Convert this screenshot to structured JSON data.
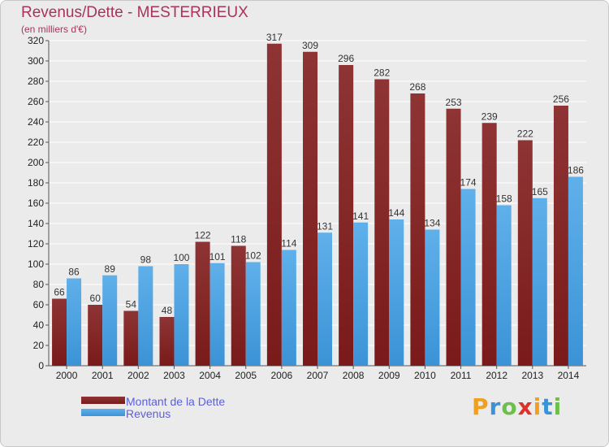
{
  "title": "Revenus/Dette - MESTERRIEUX",
  "subtitle": "(en milliers d'€)",
  "logo_text": "Proxiti",
  "colors": {
    "dette": "#7a1a1a",
    "dette_light": "#8e3434",
    "revenus": "#3b93d6",
    "revenus_light": "#5fb0ea",
    "title": "#a8345a",
    "legend_text": "#5a5ee0"
  },
  "chart_data": {
    "type": "bar",
    "title": "Revenus/Dette - MESTERRIEUX",
    "subtitle": "(en milliers d'€)",
    "categories": [
      "2000",
      "2001",
      "2002",
      "2003",
      "2004",
      "2005",
      "2006",
      "2007",
      "2008",
      "2009",
      "2010",
      "2011",
      "2012",
      "2013",
      "2014"
    ],
    "series": [
      {
        "name": "Montant de la Dette",
        "values": [
          66,
          60,
          54,
          48,
          122,
          118,
          317,
          309,
          296,
          282,
          268,
          253,
          239,
          222,
          256
        ]
      },
      {
        "name": "Revenus",
        "values": [
          86,
          89,
          98,
          100,
          101,
          102,
          114,
          131,
          141,
          144,
          134,
          174,
          158,
          165,
          186
        ]
      }
    ],
    "ylim": [
      0,
      320
    ],
    "yticks": [
      0,
      20,
      40,
      60,
      80,
      100,
      120,
      140,
      160,
      180,
      200,
      220,
      240,
      260,
      280,
      300,
      320
    ],
    "grid": true,
    "legend_position": "bottom-left"
  }
}
